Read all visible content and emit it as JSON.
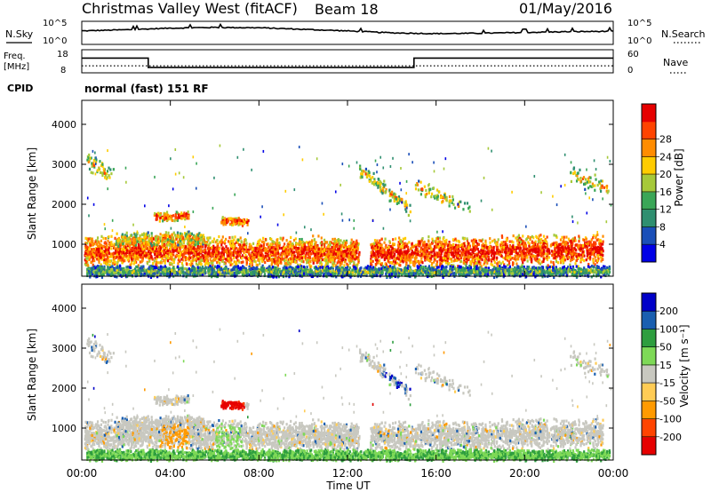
{
  "header": {
    "station": "Christmas Valley West (fitACF)",
    "beam": "Beam 18",
    "date": "01/May/2016"
  },
  "noise_panel": {
    "left_label": "N.Sky",
    "right_label": "N.Search",
    "left_ticks": [
      "10^5",
      "10^0"
    ],
    "right_ticks": [
      "10^5",
      "10^0"
    ]
  },
  "freq_panel": {
    "left_label_top": "Freq.",
    "left_label_bottom": "[MHz]",
    "right_label": "Nave",
    "left_ticks": [
      "18",
      "8"
    ],
    "right_ticks": [
      "60",
      "0"
    ],
    "cpid_label": "CPID",
    "cpid_value": "normal (fast) 151 RF"
  },
  "colors": {
    "power": [
      "#0000e6",
      "#1a4fb8",
      "#2f8f70",
      "#3aa657",
      "#a6c93a",
      "#ffcc00",
      "#ff8c00",
      "#ff4400",
      "#e60000"
    ],
    "velocity": [
      "#e60000",
      "#ff4400",
      "#ff9a00",
      "#ffcc55",
      "#c8c8c0",
      "#7ed957",
      "#2e9e3f",
      "#1a5fb0",
      "#0000c8"
    ],
    "grey": "#c8c8c0"
  },
  "chart_data": [
    {
      "type": "line",
      "title": "N.Sky",
      "x": [
        "00:00",
        "02:00",
        "04:00",
        "06:00",
        "08:00",
        "10:00",
        "12:00",
        "14:00",
        "16:00",
        "18:00",
        "20:00",
        "22:00",
        "24:00"
      ],
      "series": [
        {
          "name": "N.Sky",
          "values": [
            3.0,
            3.3,
            3.7,
            3.9,
            3.8,
            3.4,
            3.0,
            2.5,
            2.3,
            2.4,
            2.6,
            2.8,
            2.9
          ]
        }
      ],
      "ylim": [
        0,
        5
      ],
      "scale": "log"
    },
    {
      "type": "line",
      "title": "Freq.",
      "x": [
        "00:00",
        "03:00",
        "03:00",
        "15:00",
        "15:00",
        "24:00"
      ],
      "series": [
        {
          "name": "Freq.",
          "values": [
            14.8,
            14.8,
            10.2,
            10.2,
            14.8,
            14.8
          ]
        },
        {
          "name": "Nave",
          "values": [
            18,
            18,
            18,
            18,
            18,
            18
          ]
        }
      ],
      "ylim": [
        8,
        18
      ]
    },
    {
      "type": "heatmap",
      "xlabel": "",
      "ylabel": "Slant Range [km]",
      "x_ticks": [
        "00:00",
        "04:00",
        "08:00",
        "12:00",
        "16:00",
        "20:00",
        "00:00"
      ],
      "y_ticks": [
        "1000",
        "2000",
        "3000",
        "4000"
      ],
      "ylim": [
        200,
        4600
      ],
      "xlim_hours": [
        0,
        24
      ],
      "colorbar_label": "Power [dB]",
      "colorbar_ticks": [
        "4",
        "8",
        "12",
        "16",
        "20",
        "24",
        "28"
      ],
      "colorbar_range": [
        0,
        30
      ]
    },
    {
      "type": "heatmap",
      "xlabel": "Time UT",
      "ylabel": "Slant Range [km]",
      "x_ticks": [
        "00:00",
        "04:00",
        "08:00",
        "12:00",
        "16:00",
        "20:00",
        "00:00"
      ],
      "y_ticks": [
        "1000",
        "2000",
        "3000",
        "4000"
      ],
      "ylim": [
        200,
        4600
      ],
      "xlim_hours": [
        0,
        24
      ],
      "colorbar_label": "Velocity [m s⁻¹]",
      "colorbar_ticks": [
        "-200",
        "-100",
        "-50",
        "-15",
        "15",
        "50",
        "100",
        "200"
      ],
      "colorbar_range": [
        -250,
        250
      ]
    }
  ]
}
